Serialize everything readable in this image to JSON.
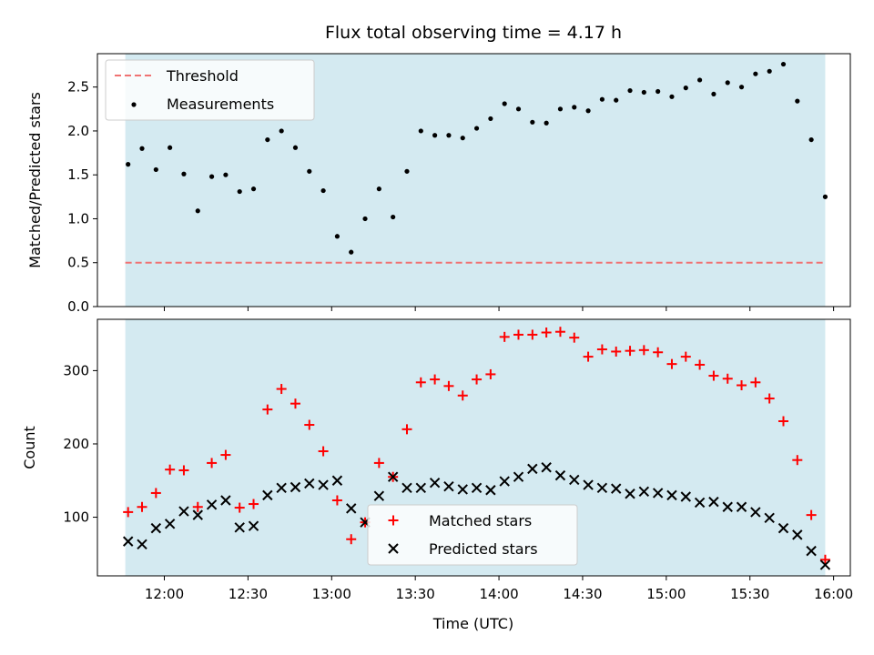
{
  "title": "Flux total observing time = 4.17 h",
  "colors": {
    "shade": "#d4eaf1",
    "threshold": "#f07272",
    "measurement": "#000000",
    "matched": "#ff0000",
    "predicted": "#000000"
  },
  "chart_data": [
    {
      "type": "scatter",
      "ylabel": "Matched/Predicted stars",
      "ylim": [
        0,
        2.88
      ],
      "yticks": [
        "0.0",
        "0.5",
        "1.0",
        "1.5",
        "2.0",
        "2.5"
      ],
      "xlim": [
        "11:36",
        "16:06"
      ],
      "observing_window": [
        "11:46",
        "15:57"
      ],
      "threshold": 0.5,
      "legend": {
        "placement": "top-left",
        "threshold_label": "Threshold",
        "measurements_label": "Measurements"
      },
      "x": [
        "11:47",
        "11:52",
        "11:57",
        "12:02",
        "12:07",
        "12:12",
        "12:17",
        "12:22",
        "12:27",
        "12:32",
        "12:37",
        "12:42",
        "12:47",
        "12:52",
        "12:57",
        "13:02",
        "13:07",
        "13:12",
        "13:17",
        "13:22",
        "13:27",
        "13:32",
        "13:37",
        "13:42",
        "13:47",
        "13:52",
        "13:57",
        "14:02",
        "14:07",
        "14:12",
        "14:17",
        "14:22",
        "14:27",
        "14:32",
        "14:37",
        "14:42",
        "14:47",
        "14:52",
        "14:57",
        "15:02",
        "15:07",
        "15:12",
        "15:17",
        "15:22",
        "15:27",
        "15:32",
        "15:37",
        "15:42",
        "15:47",
        "15:52",
        "15:57"
      ],
      "values": [
        1.62,
        1.8,
        1.56,
        1.81,
        1.51,
        1.09,
        1.48,
        1.5,
        1.31,
        1.34,
        1.9,
        2.0,
        1.81,
        1.54,
        1.32,
        0.8,
        0.62,
        1.0,
        1.34,
        1.02,
        1.54,
        2.0,
        1.95,
        1.95,
        1.92,
        2.03,
        2.14,
        2.31,
        2.25,
        2.1,
        2.09,
        2.25,
        2.27,
        2.23,
        2.36,
        2.35,
        2.46,
        2.44,
        2.45,
        2.39,
        2.49,
        2.58,
        2.42,
        2.55,
        2.5,
        2.65,
        2.68,
        2.76,
        2.34,
        1.9,
        1.25
      ]
    },
    {
      "type": "scatter",
      "xlabel": "Time (UTC)",
      "ylabel": "Count",
      "ylim": [
        20,
        370
      ],
      "yticks": [
        "100",
        "200",
        "300"
      ],
      "xticks": [
        "12:00",
        "12:30",
        "13:00",
        "13:30",
        "14:00",
        "14:30",
        "15:00",
        "15:30",
        "16:00"
      ],
      "xlim": [
        "11:36",
        "16:06"
      ],
      "observing_window": [
        "11:46",
        "15:57"
      ],
      "legend": {
        "placement": "lower-center",
        "matched_label": "Matched stars",
        "predicted_label": "Predicted stars"
      },
      "x": [
        "11:47",
        "11:52",
        "11:57",
        "12:02",
        "12:07",
        "12:12",
        "12:17",
        "12:22",
        "12:27",
        "12:32",
        "12:37",
        "12:42",
        "12:47",
        "12:52",
        "12:57",
        "13:02",
        "13:07",
        "13:12",
        "13:17",
        "13:22",
        "13:27",
        "13:32",
        "13:37",
        "13:42",
        "13:47",
        "13:52",
        "13:57",
        "14:02",
        "14:07",
        "14:12",
        "14:17",
        "14:22",
        "14:27",
        "14:32",
        "14:37",
        "14:42",
        "14:47",
        "14:52",
        "14:57",
        "15:02",
        "15:07",
        "15:12",
        "15:17",
        "15:22",
        "15:27",
        "15:32",
        "15:37",
        "15:42",
        "15:47",
        "15:52",
        "15:57"
      ],
      "series": [
        {
          "name": "Matched stars",
          "values": [
            107,
            114,
            133,
            165,
            164,
            114,
            174,
            185,
            113,
            118,
            247,
            275,
            255,
            226,
            190,
            123,
            70,
            93,
            174,
            155,
            220,
            284,
            288,
            279,
            266,
            288,
            295,
            346,
            349,
            349,
            352,
            353,
            345,
            319,
            329,
            326,
            327,
            328,
            325,
            309,
            319,
            308,
            293,
            289,
            280,
            284,
            262,
            231,
            178,
            103,
            42
          ]
        },
        {
          "name": "Predicted stars",
          "values": [
            67,
            63,
            85,
            91,
            108,
            103,
            117,
            123,
            86,
            88,
            130,
            140,
            141,
            146,
            144,
            150,
            112,
            93,
            129,
            155,
            140,
            140,
            147,
            142,
            138,
            140,
            137,
            149,
            155,
            166,
            168,
            157,
            151,
            144,
            140,
            139,
            132,
            135,
            133,
            130,
            128,
            120,
            121,
            114,
            114,
            107,
            99,
            85,
            76,
            54,
            35
          ]
        }
      ]
    }
  ]
}
